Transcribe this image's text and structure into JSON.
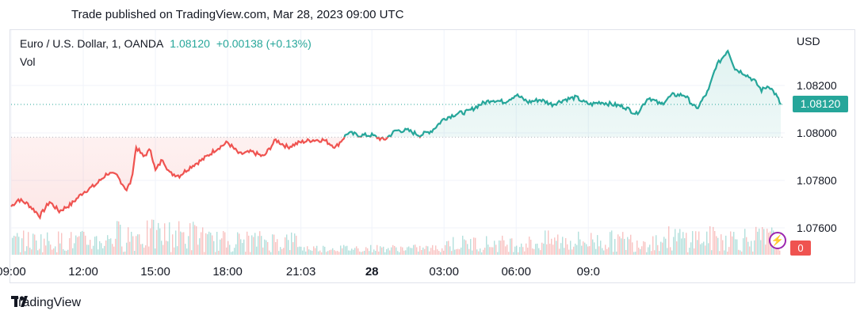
{
  "header": {
    "published": "Trade published on TradingView.com, Mar 28, 2023 09:00 UTC"
  },
  "legend": {
    "symbol": "Euro / U.S. Dollar, 1, OANDA",
    "price": "1.08120",
    "change": "+0.00138 (+0.13%)",
    "volume_label": "Vol"
  },
  "axis": {
    "currency": "USD"
  },
  "last_price_tag": "1.08120",
  "volume_tag": "0",
  "brand": "TradingView",
  "colors": {
    "up": "#26a69a",
    "down": "#ef5350",
    "accent": "#9c27b0"
  },
  "chart_data": {
    "type": "line",
    "y_ticks": [
      "1.07600",
      "1.07800",
      "1.08000",
      "1.08200"
    ],
    "x_ticks": [
      {
        "label": "09:00",
        "bold": false
      },
      {
        "label": "12:00",
        "bold": false
      },
      {
        "label": "15:00",
        "bold": false
      },
      {
        "label": "18:00",
        "bold": false
      },
      {
        "label": "21:03",
        "bold": false
      },
      {
        "label": "28",
        "bold": true
      },
      {
        "label": "03:00",
        "bold": false
      },
      {
        "label": "06:00",
        "bold": false
      },
      {
        "label": "09:0",
        "bold": false
      }
    ],
    "ylim": [
      1.075,
      1.084
    ],
    "reference_price": 1.07982,
    "last_price": 1.0812,
    "series": [
      {
        "hours": [
          0,
          0.3,
          0.7,
          1.2,
          1.6,
          2.0,
          2.5,
          3.0,
          3.5,
          4.0,
          4.4,
          4.8,
          5.0,
          5.2,
          5.5,
          5.8,
          6.0,
          6.3,
          6.6,
          7.0,
          7.5,
          8.0,
          8.5,
          9.0,
          9.5,
          10.0,
          10.5,
          11.0,
          11.5,
          12.0,
          12.5,
          13.0,
          13.5,
          14.0,
          14.5,
          15.0,
          15.5,
          16.0,
          16.5,
          17.0,
          17.5,
          18.0,
          18.5,
          19.0,
          19.5,
          20.0,
          20.5,
          21.0,
          21.5,
          22.0,
          22.5,
          23.0,
          23.5,
          23.8,
          24.1,
          24.5,
          25.0,
          25.5,
          26.0,
          26.5,
          27.0,
          27.5,
          28.0,
          28.5,
          29.0,
          29.3,
          29.6,
          29.8,
          30.1,
          30.5,
          30.9,
          31.2,
          31.5,
          31.8,
          32.0
        ],
        "prices": [
          1.0769,
          1.0772,
          1.077,
          1.0765,
          1.0771,
          1.0767,
          1.077,
          1.0775,
          1.0778,
          1.0783,
          1.0782,
          1.0776,
          1.078,
          1.0794,
          1.079,
          1.0793,
          1.0784,
          1.0789,
          1.0783,
          1.0782,
          1.0786,
          1.0789,
          1.0793,
          1.0796,
          1.0791,
          1.0792,
          1.079,
          1.0797,
          1.0794,
          1.0796,
          1.0797,
          1.0797,
          1.0794,
          1.08,
          1.0799,
          1.0799,
          1.0797,
          1.0801,
          1.0801,
          1.0799,
          1.0801,
          1.0806,
          1.0808,
          1.0809,
          1.0812,
          1.0814,
          1.0813,
          1.0816,
          1.0813,
          1.0814,
          1.0812,
          1.0814,
          1.0815,
          1.0813,
          1.0812,
          1.0813,
          1.0812,
          1.0811,
          1.0808,
          1.0815,
          1.0812,
          1.0816,
          1.0816,
          1.081,
          1.0818,
          1.0828,
          1.0832,
          1.0835,
          1.0827,
          1.0825,
          1.0822,
          1.0818,
          1.082,
          1.0816,
          1.0812
        ]
      }
    ]
  }
}
